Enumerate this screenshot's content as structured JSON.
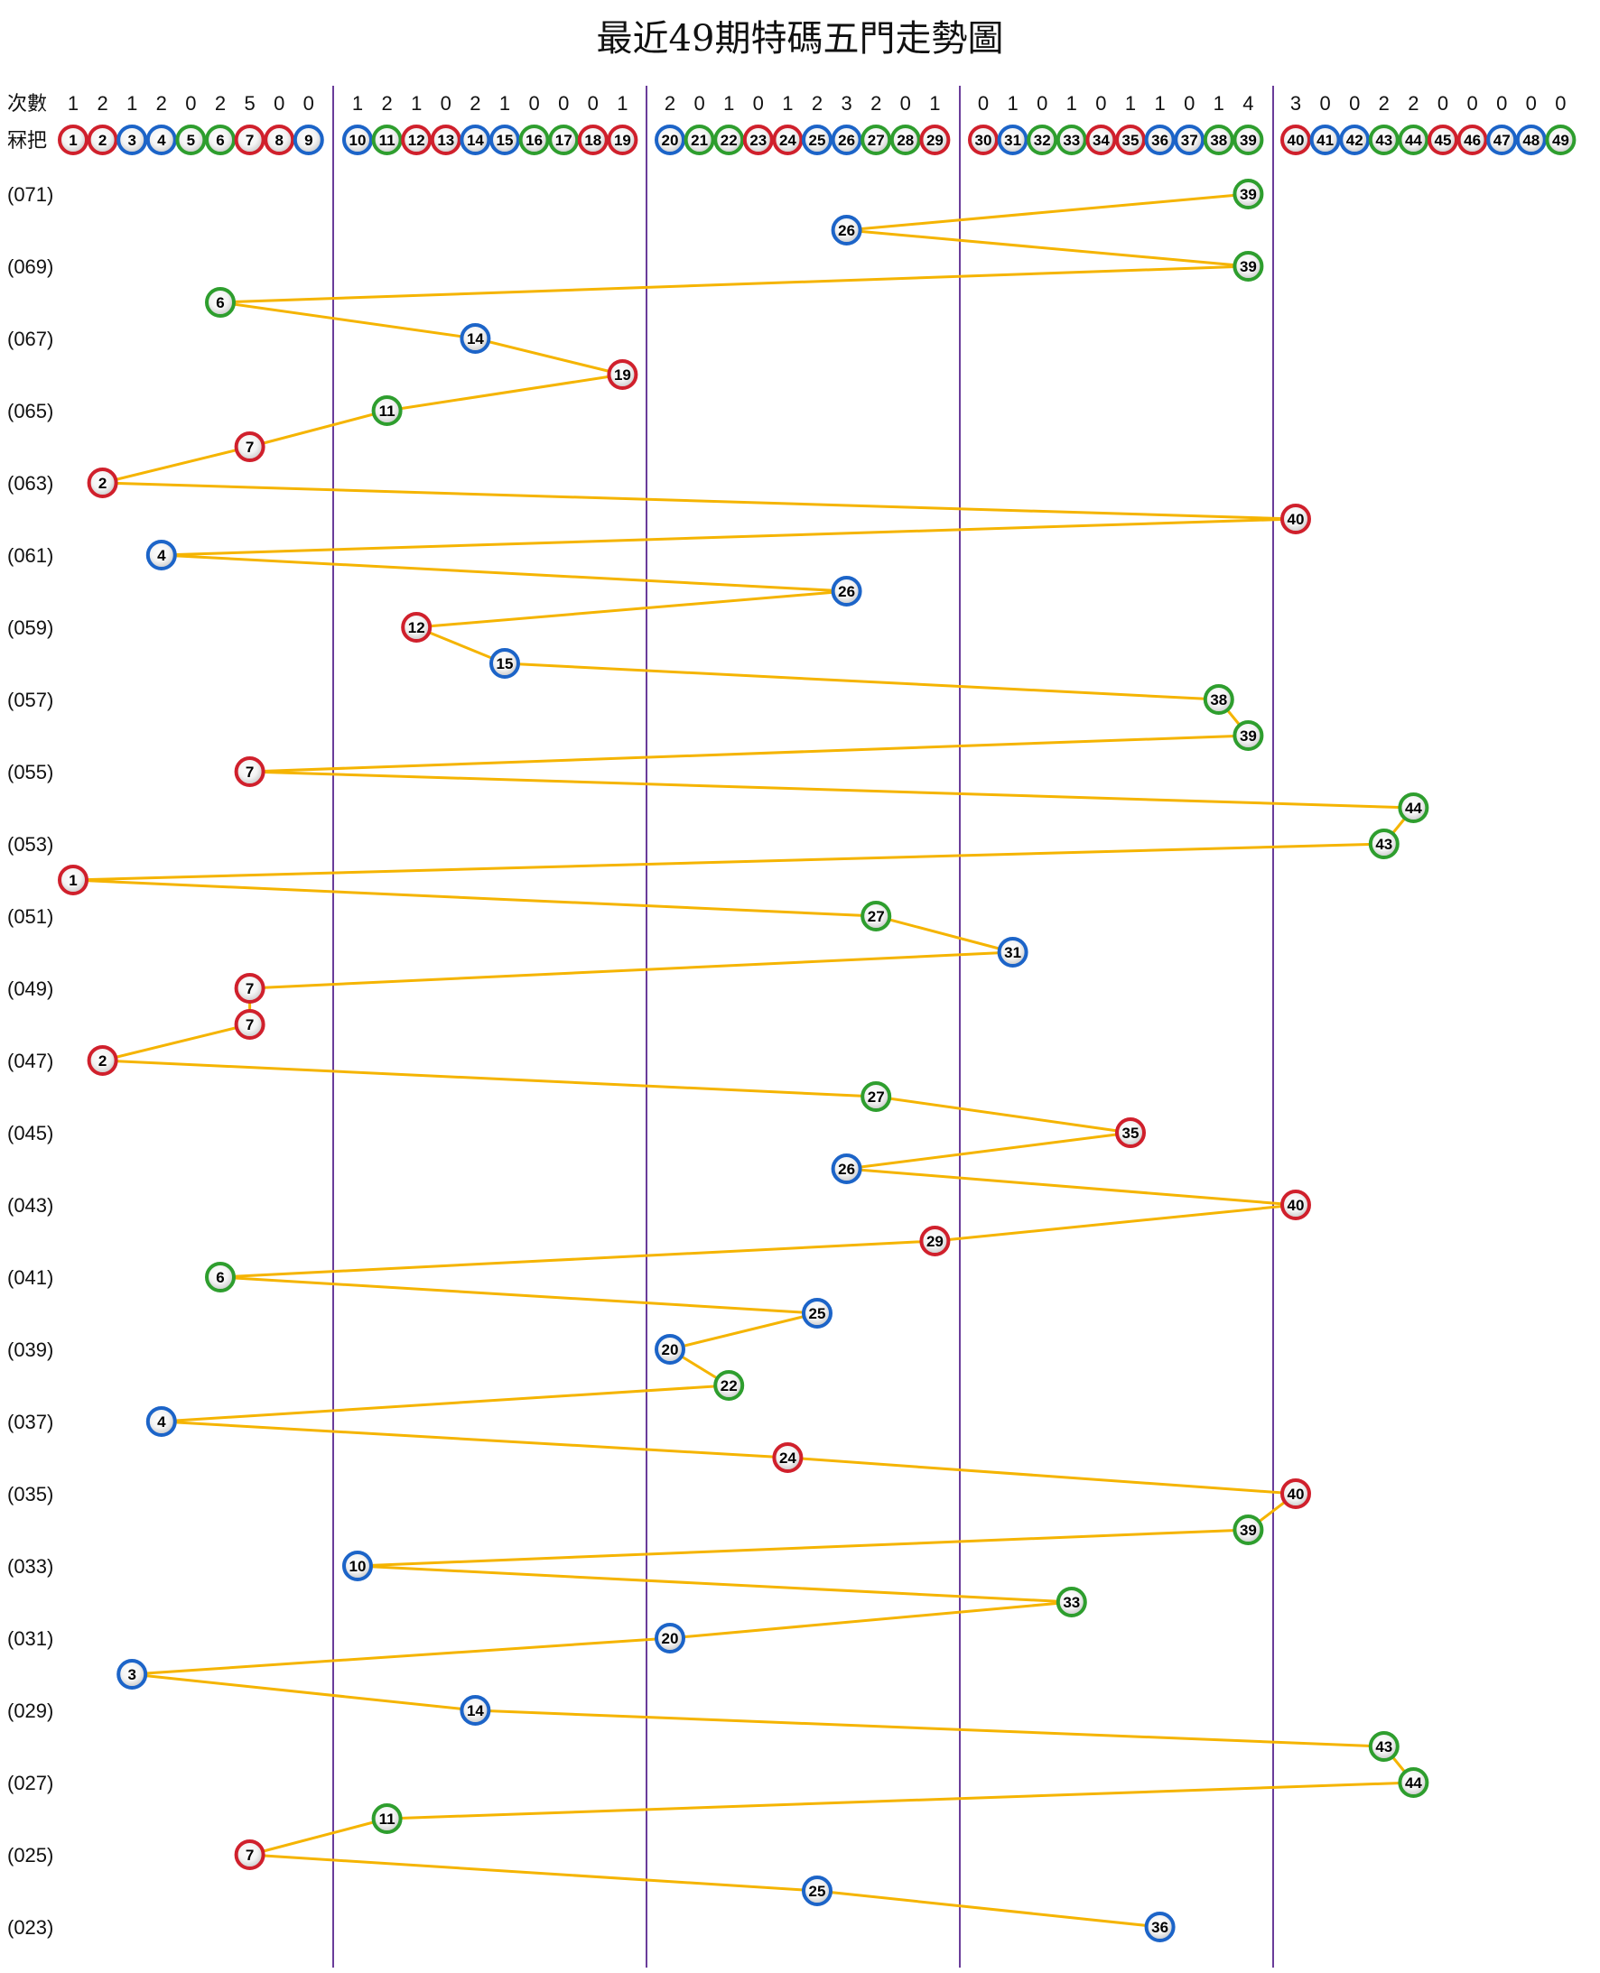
{
  "title": "最近49期特碼五門走勢圖",
  "header": {
    "count_label": "次數",
    "number_label": "冧把"
  },
  "colors": {
    "red": "#d0202c",
    "blue": "#1c64c8",
    "green": "#2e9e2e",
    "line": "#f5b400",
    "divider": "#6a3d9a"
  },
  "chart_data": {
    "type": "line",
    "title": "最近49期特碼五門走勢圖",
    "groups": [
      [
        1,
        2,
        3,
        4,
        5,
        6,
        7,
        8,
        9
      ],
      [
        10,
        11,
        12,
        13,
        14,
        15,
        16,
        17,
        18,
        19
      ],
      [
        20,
        21,
        22,
        23,
        24,
        25,
        26,
        27,
        28,
        29
      ],
      [
        30,
        31,
        32,
        33,
        34,
        35,
        36,
        37,
        38,
        39
      ],
      [
        40,
        41,
        42,
        43,
        44,
        45,
        46,
        47,
        48,
        49
      ]
    ],
    "counts": [
      1,
      2,
      1,
      2,
      0,
      2,
      5,
      0,
      0,
      1,
      2,
      1,
      0,
      2,
      1,
      0,
      0,
      0,
      1,
      2,
      0,
      1,
      0,
      1,
      2,
      3,
      2,
      0,
      1,
      0,
      1,
      0,
      1,
      0,
      1,
      1,
      0,
      1,
      4,
      3,
      0,
      0,
      2,
      2,
      0,
      0,
      0,
      0,
      0
    ],
    "ball_colors": {
      "red": [
        1,
        2,
        7,
        8,
        12,
        13,
        18,
        19,
        23,
        24,
        29,
        30,
        34,
        35,
        40,
        45,
        46
      ],
      "blue": [
        3,
        4,
        9,
        10,
        14,
        15,
        20,
        25,
        26,
        31,
        36,
        37,
        41,
        42,
        47,
        48
      ],
      "green": [
        5,
        6,
        11,
        16,
        17,
        21,
        22,
        27,
        28,
        32,
        33,
        38,
        39,
        43,
        44,
        49
      ]
    },
    "row_labels": [
      "(071)",
      "(069)",
      "(067)",
      "(065)",
      "(063)",
      "(061)",
      "(059)",
      "(057)",
      "(055)",
      "(053)",
      "(051)",
      "(049)",
      "(047)",
      "(045)",
      "(043)",
      "(041)",
      "(039)",
      "(037)",
      "(035)",
      "(033)",
      "(031)",
      "(029)",
      "(027)",
      "(025)",
      "(023)"
    ],
    "draws": [
      39,
      26,
      39,
      6,
      14,
      19,
      11,
      7,
      2,
      40,
      4,
      26,
      12,
      15,
      38,
      39,
      7,
      44,
      43,
      1,
      27,
      31,
      7,
      7,
      2,
      27,
      35,
      26,
      40,
      29,
      6,
      25,
      20,
      22,
      4,
      24,
      40,
      39,
      10,
      33,
      20,
      3,
      14,
      43,
      44,
      11,
      7,
      25,
      36
    ]
  }
}
